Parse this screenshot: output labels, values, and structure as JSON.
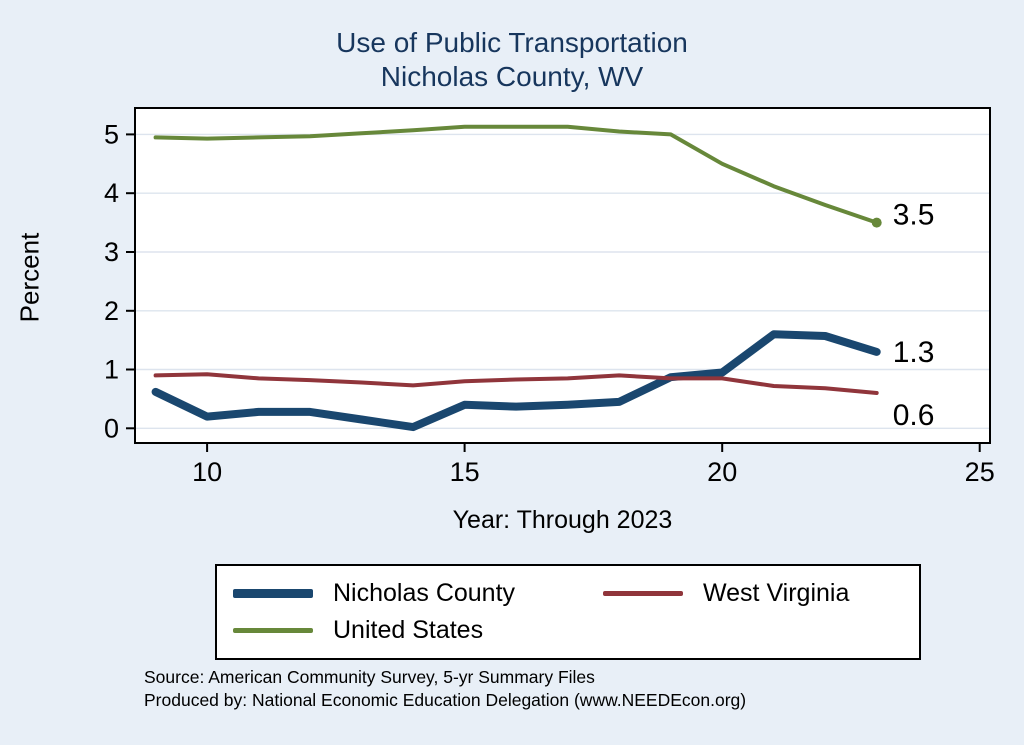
{
  "title": {
    "line1": "Use of Public Transportation",
    "line2": "Nicholas County, WV"
  },
  "colors": {
    "background": "#e8eff7",
    "plot_background": "#ffffff",
    "grid": "#dde4ee",
    "axis": "#000000",
    "title_text": "#17365d"
  },
  "chart_data": {
    "type": "line",
    "title": "Use of Public Transportation Nicholas County, WV",
    "xlabel": "Year: Through 2023",
    "ylabel": "Percent",
    "x": [
      9,
      10,
      11,
      12,
      13,
      14,
      15,
      16,
      17,
      18,
      19,
      20,
      21,
      22,
      23
    ],
    "series": [
      {
        "name": "Nicholas County",
        "color": "#1a476f",
        "width": 8,
        "values": [
          0.62,
          0.2,
          0.28,
          0.28,
          0.15,
          0.02,
          0.4,
          0.37,
          0.4,
          0.45,
          0.87,
          0.95,
          1.6,
          1.57,
          1.3
        ],
        "end_label": "1.3",
        "end_marker": false
      },
      {
        "name": "West Virginia",
        "color": "#90353b",
        "width": 4,
        "values": [
          0.9,
          0.92,
          0.85,
          0.82,
          0.78,
          0.73,
          0.8,
          0.83,
          0.85,
          0.9,
          0.85,
          0.85,
          0.72,
          0.68,
          0.6
        ],
        "end_label": "0.6",
        "end_marker": false
      },
      {
        "name": "United States",
        "color": "#67883a",
        "width": 4,
        "values": [
          4.95,
          4.93,
          4.95,
          4.97,
          5.02,
          5.07,
          5.13,
          5.13,
          5.13,
          5.05,
          5.0,
          4.5,
          4.12,
          3.8,
          3.5
        ],
        "end_label": "3.5",
        "end_marker": true
      }
    ],
    "x_ticks": [
      10,
      15,
      20,
      25
    ],
    "y_ticks": [
      0,
      1,
      2,
      3,
      4,
      5
    ],
    "xlim": [
      8.6,
      25.2
    ],
    "ylim": [
      -0.25,
      5.45
    ],
    "grid": "horizontal",
    "legend_position": "bottom"
  },
  "footer": {
    "line1": "Source: American Community Survey, 5-yr Summary Files",
    "line2": "Produced by: National Economic Education Delegation (www.NEEDEcon.org)"
  }
}
